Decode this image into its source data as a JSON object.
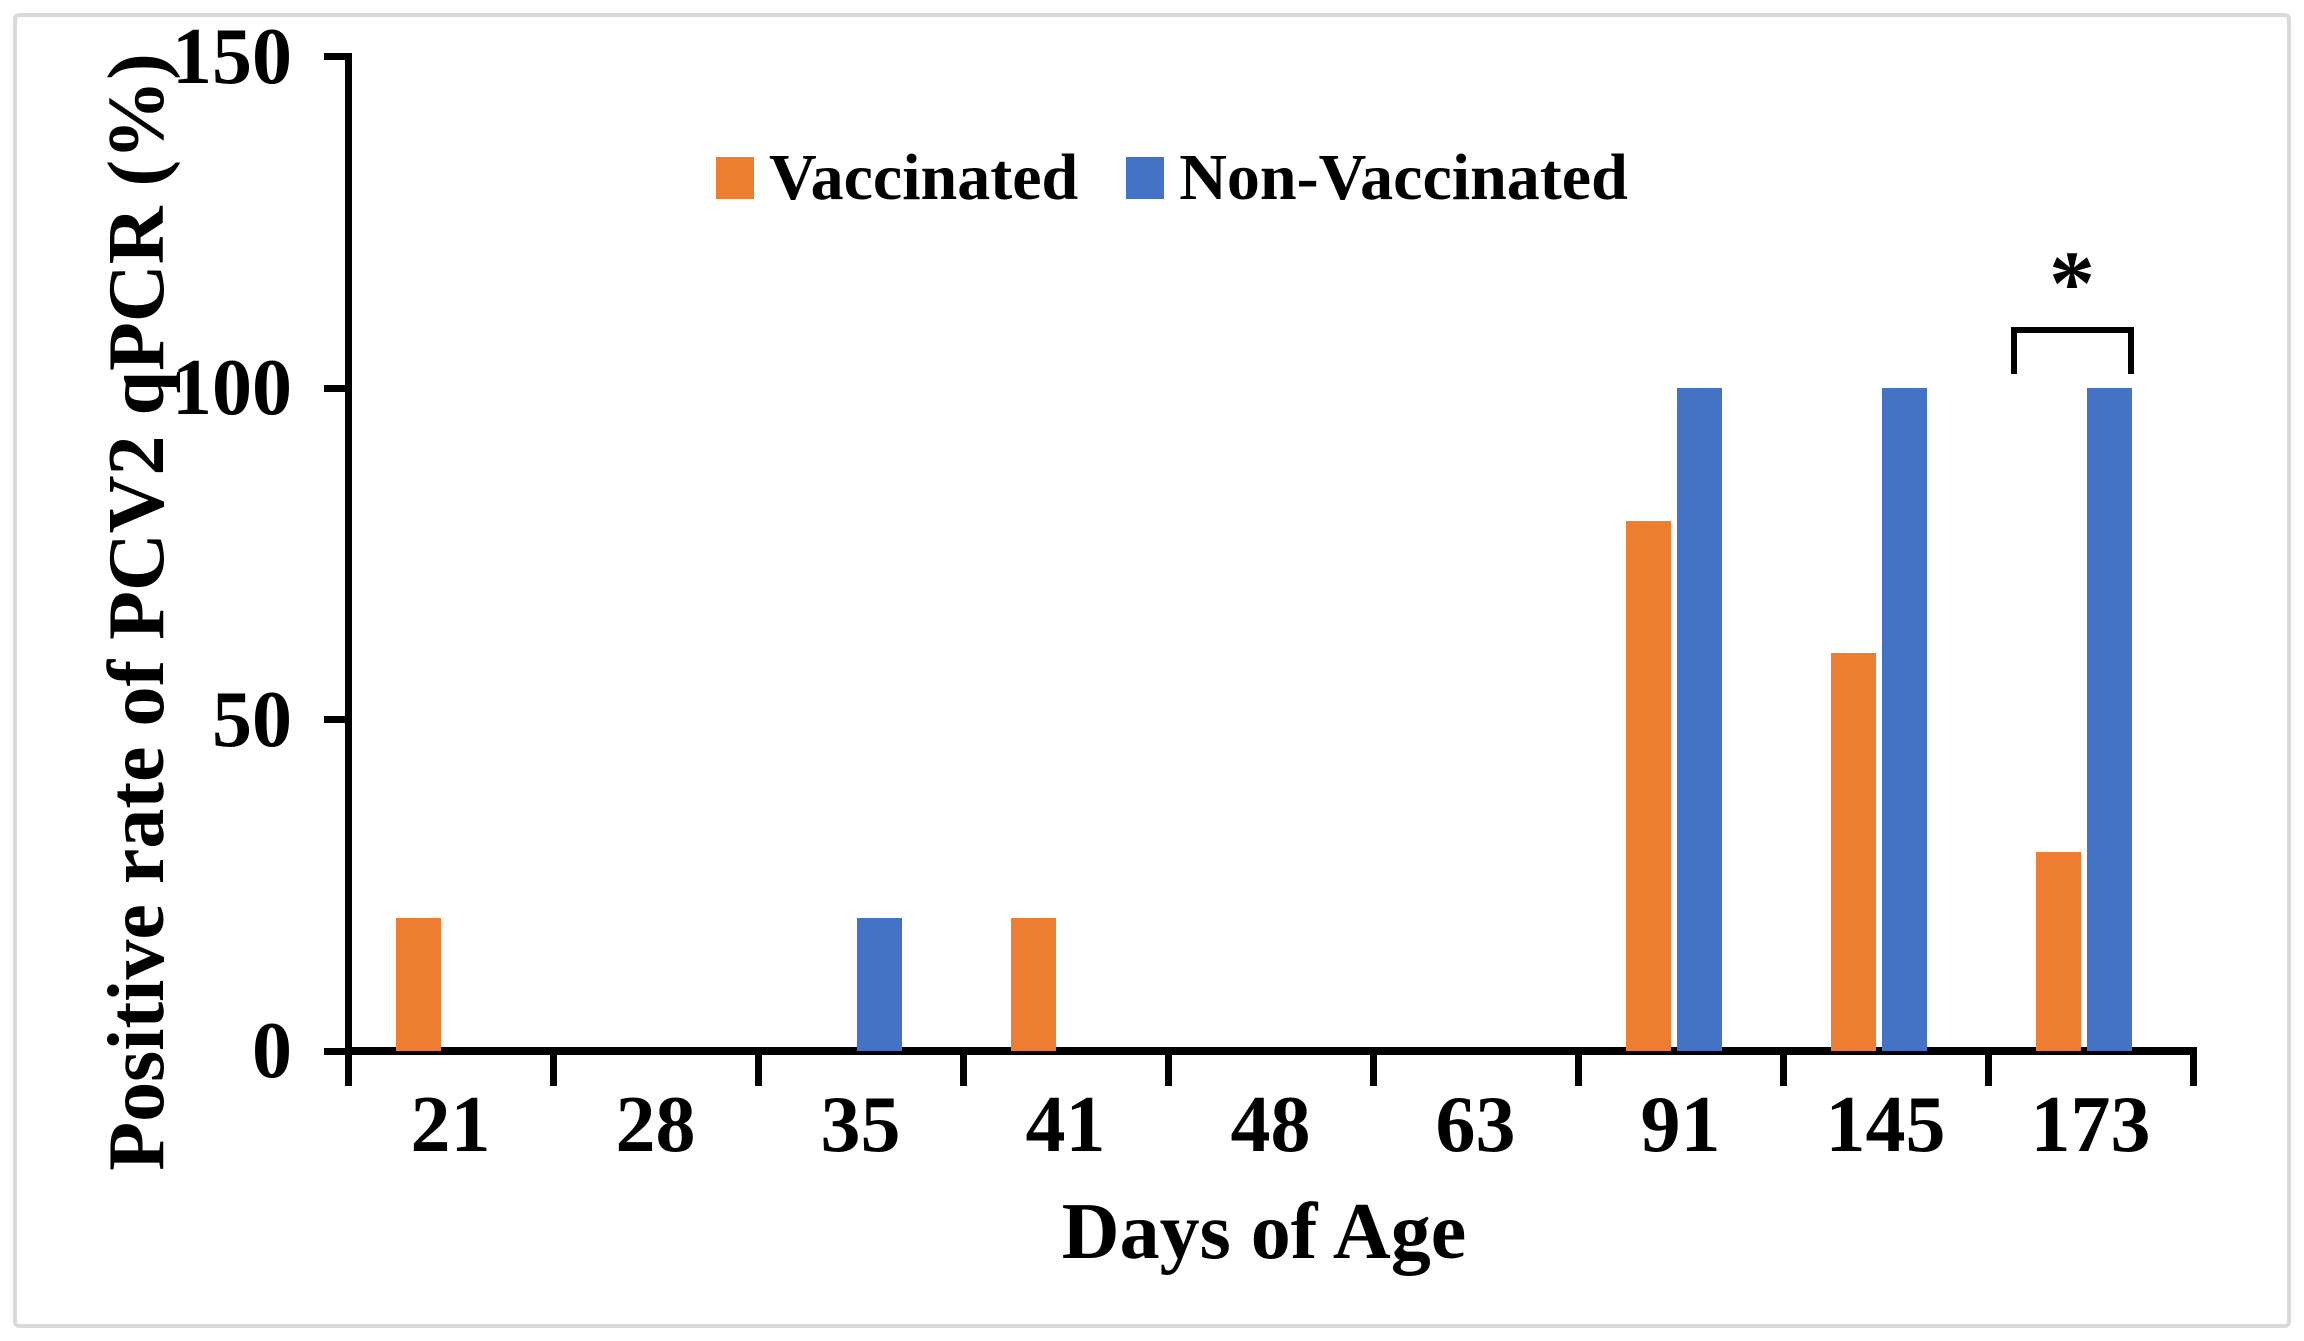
{
  "figure": {
    "y_axis_title": "Positive rate of PCV2 qPCR (%)",
    "x_axis_title": "Days of Age",
    "significance_marker": "*",
    "colors": {
      "vaccinated": "#ED7D31",
      "non_vaccinated": "#4472C4",
      "axis": "#000000",
      "frame": "#D9D9D9",
      "background": "#FFFFFF"
    }
  },
  "legend": {
    "items": [
      {
        "label": "Vaccinated",
        "color": "#ED7D31"
      },
      {
        "label": "Non-Vaccinated",
        "color": "#4472C4"
      }
    ]
  },
  "chart_data": {
    "type": "bar",
    "categories": [
      "21",
      "28",
      "35",
      "41",
      "48",
      "63",
      "91",
      "145",
      "173"
    ],
    "series": [
      {
        "name": "Vaccinated",
        "color": "#ED7D31",
        "values": [
          20,
          0,
          0,
          20,
          0,
          0,
          80,
          60,
          30
        ]
      },
      {
        "name": "Non-Vaccinated",
        "color": "#4472C4",
        "values": [
          0,
          0,
          20,
          0,
          0,
          0,
          100,
          100,
          100
        ]
      }
    ],
    "title": "",
    "xlabel": "Days of Age",
    "ylabel": "Positive rate of PCV2 qPCR (%)",
    "ylim": [
      0,
      150
    ],
    "yticks": [
      0,
      50,
      100,
      150
    ],
    "grid": false,
    "legend_position": "top-center",
    "annotations": [
      {
        "type": "significance-bracket",
        "category": "173",
        "between": [
          "Vaccinated",
          "Non-Vaccinated"
        ],
        "label": "*"
      }
    ]
  }
}
